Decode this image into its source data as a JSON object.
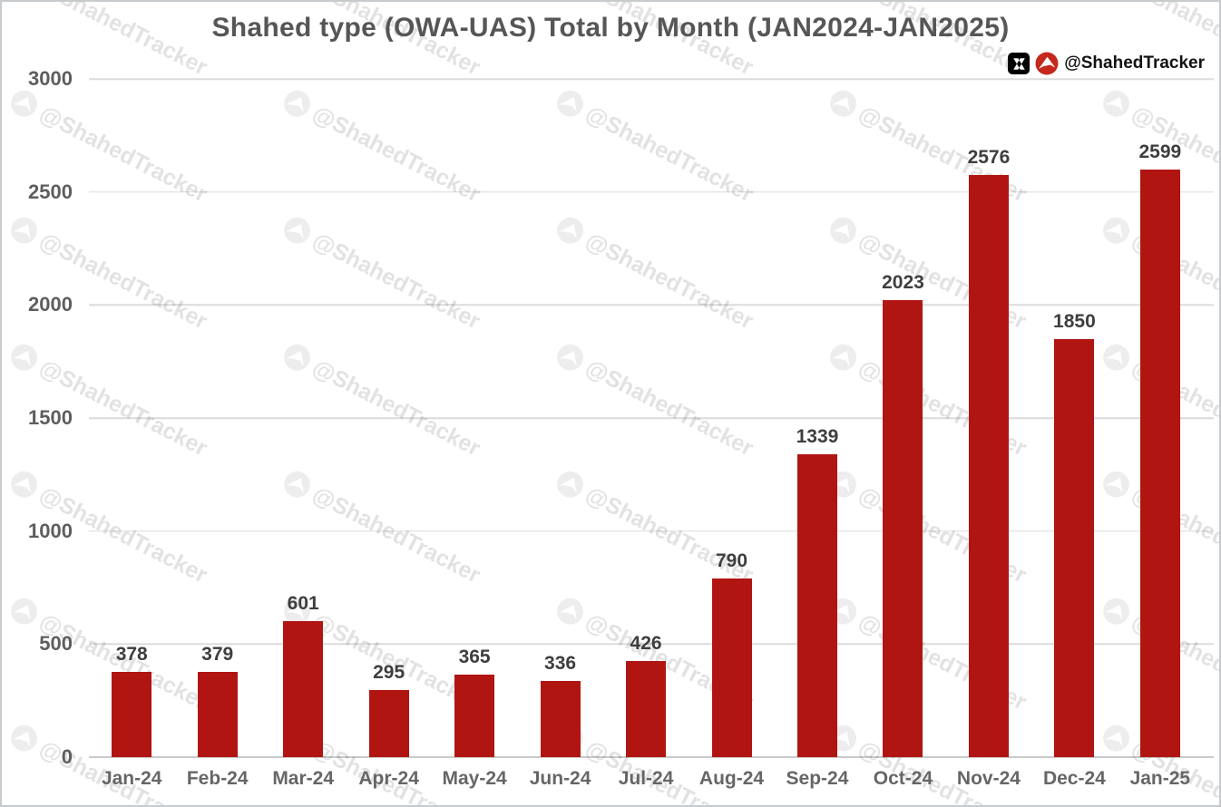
{
  "title": "Shahed type (OWA-UAS) Total by Month (JAN2024-JAN2025)",
  "attribution": {
    "handle": "@ShahedTracker",
    "icons": [
      "x-logo",
      "shahed-drone-icon"
    ]
  },
  "watermark": {
    "text": "@ShahedTracker",
    "icon": "shahed-drone-icon"
  },
  "chart_data": {
    "type": "bar",
    "title": "Shahed type (OWA-UAS) Total by Month (JAN2024-JAN2025)",
    "categories": [
      "Jan-24",
      "Feb-24",
      "Mar-24",
      "Apr-24",
      "May-24",
      "Jun-24",
      "Jul-24",
      "Aug-24",
      "Sep-24",
      "Oct-24",
      "Nov-24",
      "Dec-24",
      "Jan-25"
    ],
    "values": [
      378,
      379,
      601,
      295,
      365,
      336,
      426,
      790,
      1339,
      2023,
      2576,
      1850,
      2599
    ],
    "xlabel": "",
    "ylabel": "",
    "ylim": [
      0,
      3000
    ],
    "yticks": [
      0,
      500,
      1000,
      1500,
      2000,
      2500,
      3000
    ],
    "grid": "horizontal",
    "legend": "none",
    "value_labels": true,
    "bar_color": "#B11512",
    "grid_color": "#DBDBDB",
    "badge_red": "#C5281C"
  }
}
